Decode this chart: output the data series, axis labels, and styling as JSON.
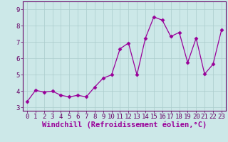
{
  "x": [
    0,
    1,
    2,
    3,
    4,
    5,
    6,
    7,
    8,
    9,
    10,
    11,
    12,
    13,
    14,
    15,
    16,
    17,
    18,
    19,
    20,
    21,
    22,
    23
  ],
  "y": [
    3.35,
    4.05,
    3.95,
    4.0,
    3.75,
    3.65,
    3.75,
    3.65,
    4.25,
    4.8,
    5.0,
    6.6,
    6.95,
    5.0,
    7.25,
    8.55,
    8.35,
    7.35,
    7.6,
    5.75,
    7.25,
    5.05,
    5.65,
    7.75
  ],
  "line_color": "#990099",
  "marker": "D",
  "marker_size": 2.5,
  "bg_color": "#cce8e8",
  "grid_color": "#aacccc",
  "xlabel": "Windchill (Refroidissement éolien,°C)",
  "xlabel_color": "#990099",
  "xlim": [
    -0.5,
    23.5
  ],
  "ylim": [
    2.8,
    9.5
  ],
  "yticks": [
    3,
    4,
    5,
    6,
    7,
    8,
    9
  ],
  "xticks": [
    0,
    1,
    2,
    3,
    4,
    5,
    6,
    7,
    8,
    9,
    10,
    11,
    12,
    13,
    14,
    15,
    16,
    17,
    18,
    19,
    20,
    21,
    22,
    23
  ],
  "tick_label_size": 6.5,
  "xlabel_size": 7.5,
  "spine_color": "#660066",
  "line_width": 0.9
}
